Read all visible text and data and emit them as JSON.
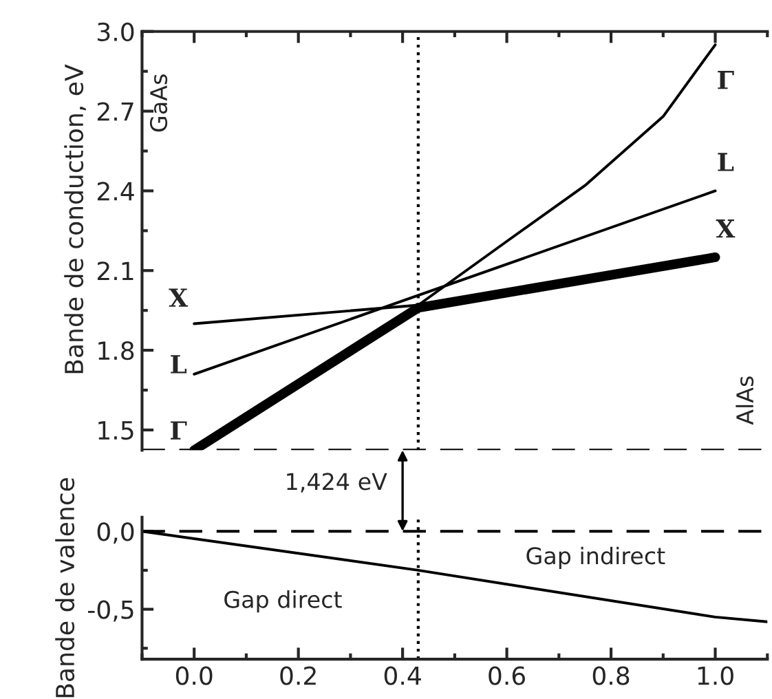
{
  "chart_data": [
    {
      "type": "line",
      "ylabel": "Bande de conduction, eV",
      "xlim": [
        -0.1,
        1.1
      ],
      "ylim": [
        1.424,
        3.0
      ],
      "xticks": [
        0.0,
        0.2,
        0.4,
        0.6,
        0.8,
        1.0
      ],
      "yticks": [
        1.5,
        1.8,
        2.1,
        2.4,
        2.7,
        {
          "value": 3,
          "label": "3.0"
        }
      ],
      "tick_labels": "y",
      "series": [
        {
          "color": "#000000",
          "x": [
            0.0,
            0.43,
            1.0
          ],
          "values": [
            1.424,
            1.96,
            2.15
          ]
        },
        {
          "color": "#000000",
          "x": [
            0.43,
            0.6,
            0.75,
            0.9,
            1.0
          ],
          "values": [
            1.97,
            2.21,
            2.42,
            2.68,
            2.95
          ]
        },
        {
          "color": "#000000",
          "x": [
            0.0,
            1.0
          ],
          "values": [
            1.71,
            2.4
          ]
        },
        {
          "color": "#000000",
          "x": [
            0.0,
            0.43
          ],
          "values": [
            1.9,
            1.97
          ]
        }
      ],
      "ref_lines": [
        {
          "axis": "y",
          "value": 1.424,
          "line_style": "dashed",
          "color": "#000000"
        },
        {
          "axis": "x",
          "value": 0.43,
          "line_style": "dotted",
          "color": "#000000"
        }
      ],
      "annotations": [
        "GaAs",
        "AlAs",
        "X",
        "L",
        "Γ",
        "Γ",
        "L",
        "X"
      ]
    },
    {
      "type": "line",
      "ylabel": "Bande de valence",
      "xlim": [
        -0.1,
        1.1
      ],
      "ylim": [
        -0.82,
        0.09
      ],
      "xticks": [
        {
          "value": 0,
          "label": "0.0"
        },
        0.2,
        0.4,
        0.6,
        0.8,
        {
          "value": 1,
          "label": "1.0"
        }
      ],
      "yticks": [
        {
          "value": 0.0,
          "label": "0,0"
        },
        {
          "value": -0.5,
          "label": "-0,5"
        }
      ],
      "series": [
        {
          "color": "#000000",
          "x": [
            -0.1,
            0.43,
            1.0,
            1.1
          ],
          "values": [
            0.0,
            -0.25,
            -0.55,
            -0.58
          ]
        }
      ],
      "ref_lines": [
        {
          "axis": "y",
          "value": 0.0,
          "line_style": "dashed",
          "color": "#000000"
        },
        {
          "axis": "x",
          "value": 0.43,
          "line_style": "dotted",
          "color": "#000000"
        }
      ],
      "annotations": [
        "Gap direct",
        "Gap indirect",
        "1,424 eV"
      ]
    }
  ]
}
